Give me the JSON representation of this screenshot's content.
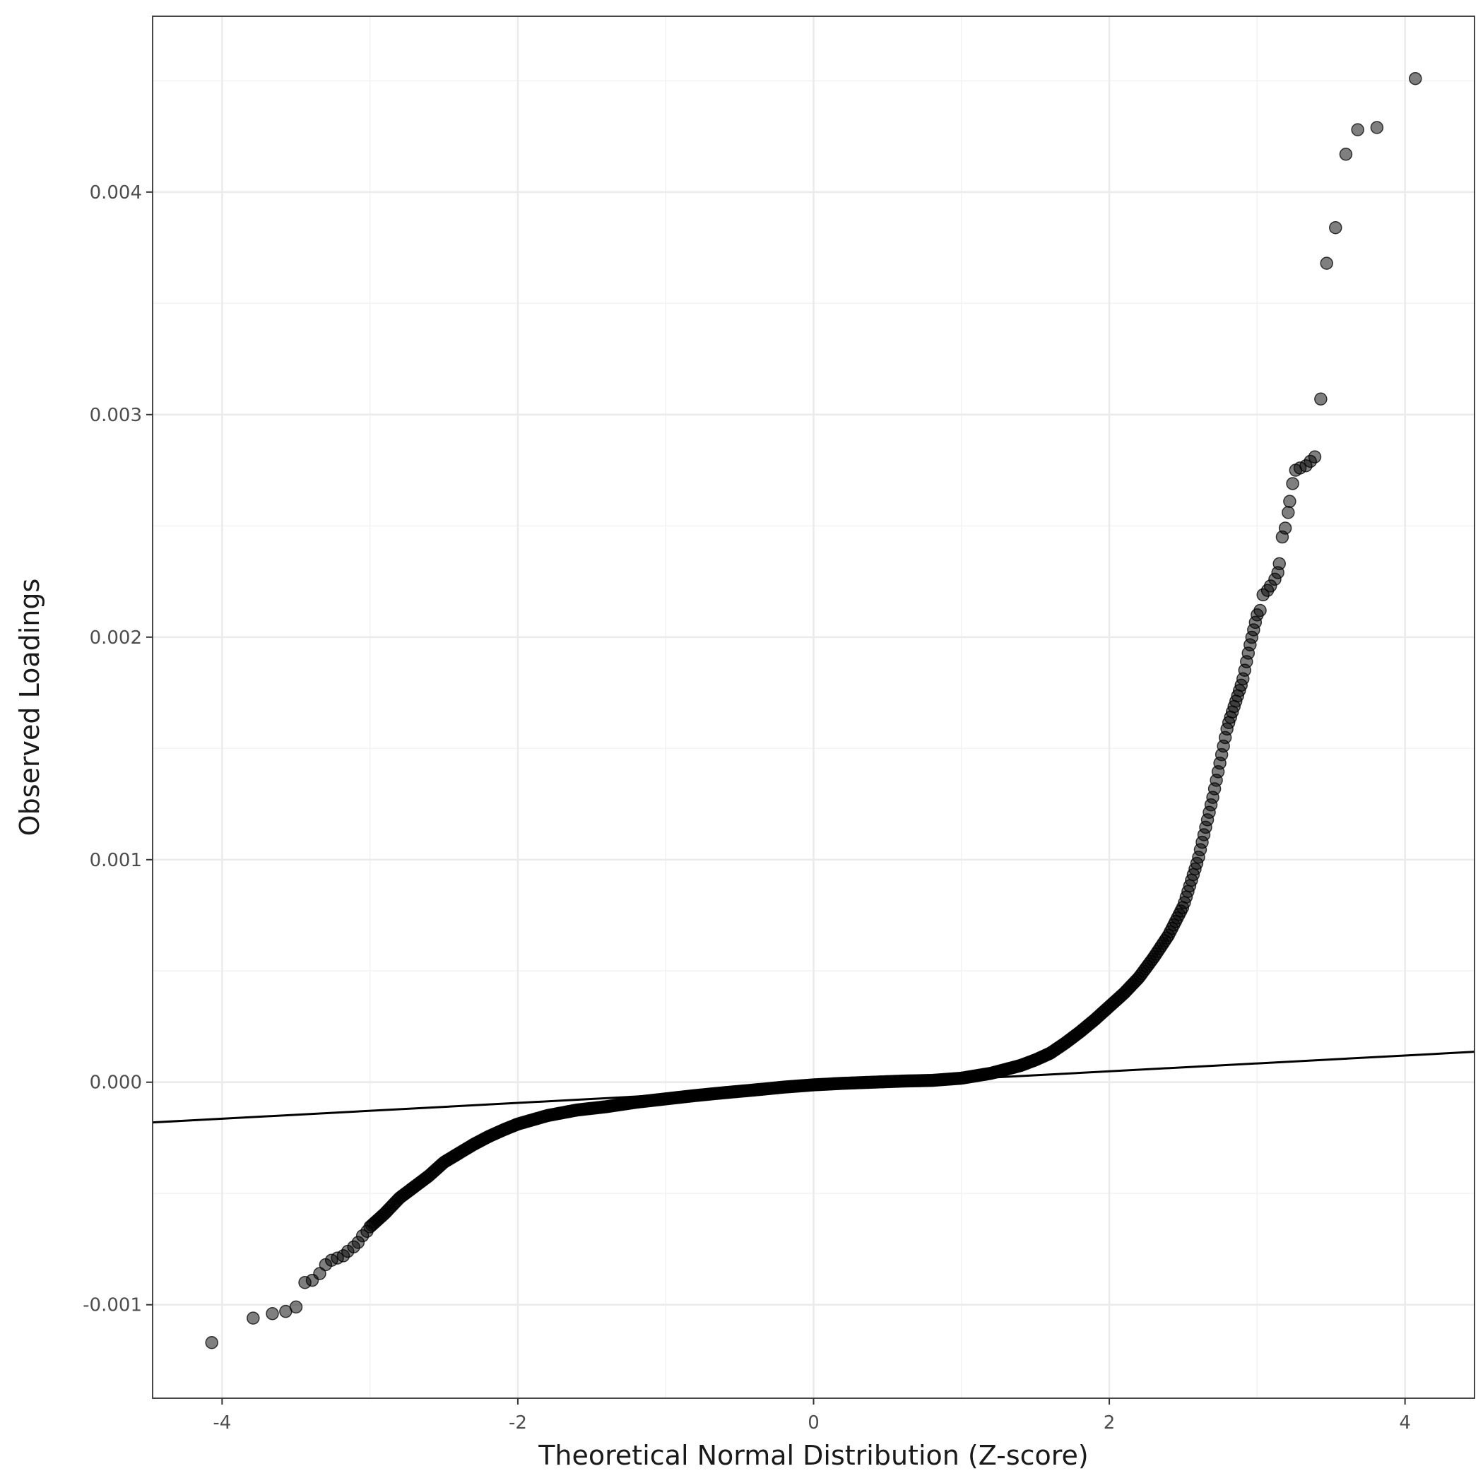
{
  "chart_data": {
    "type": "scatter",
    "xlabel": "Theoretical Normal Distribution (Z-score)",
    "ylabel": "Observed Loadings",
    "xlim": [
      -4.47,
      4.47
    ],
    "ylim": [
      -0.00142,
      0.00479
    ],
    "x_ticks": [
      {
        "value": -4,
        "label": "-4"
      },
      {
        "value": -2,
        "label": "-2"
      },
      {
        "value": 0,
        "label": "0"
      },
      {
        "value": 2,
        "label": "2"
      },
      {
        "value": 4,
        "label": "4"
      }
    ],
    "y_ticks": [
      {
        "value": -0.001,
        "label": "-0.001"
      },
      {
        "value": 0.0,
        "label": "0.000"
      },
      {
        "value": 0.001,
        "label": "0.001"
      },
      {
        "value": 0.002,
        "label": "0.002"
      },
      {
        "value": 0.003,
        "label": "0.003"
      },
      {
        "value": 0.004,
        "label": "0.004"
      }
    ],
    "reference_line": {
      "intercept": -2.2e-05,
      "slope": 3.55e-05
    },
    "grid": true,
    "legend": "none",
    "tail_points": [
      {
        "x": -4.07,
        "y": -0.00117
      },
      {
        "x": -3.79,
        "y": -0.00106
      },
      {
        "x": -3.66,
        "y": -0.00104
      },
      {
        "x": -3.57,
        "y": -0.00103
      },
      {
        "x": -3.5,
        "y": -0.00101
      },
      {
        "x": -3.44,
        "y": -0.0009
      },
      {
        "x": -3.39,
        "y": -0.00089
      },
      {
        "x": -3.34,
        "y": -0.00086
      },
      {
        "x": -3.3,
        "y": -0.00082
      },
      {
        "x": -3.26,
        "y": -0.0008
      },
      {
        "x": -3.22,
        "y": -0.00079
      },
      {
        "x": -3.18,
        "y": -0.00078
      },
      {
        "x": -3.15,
        "y": -0.00076
      },
      {
        "x": -3.11,
        "y": -0.00074
      },
      {
        "x": -3.08,
        "y": -0.00072
      },
      {
        "x": -3.05,
        "y": -0.00069
      },
      {
        "x": -3.02,
        "y": -0.00067
      },
      {
        "x": 3.02,
        "y": 0.00212
      },
      {
        "x": 3.04,
        "y": 0.00219
      },
      {
        "x": 3.07,
        "y": 0.00221
      },
      {
        "x": 3.09,
        "y": 0.00223
      },
      {
        "x": 3.12,
        "y": 0.00226
      },
      {
        "x": 3.14,
        "y": 0.00229
      },
      {
        "x": 3.15,
        "y": 0.00233
      },
      {
        "x": 3.17,
        "y": 0.00245
      },
      {
        "x": 3.19,
        "y": 0.00249
      },
      {
        "x": 3.21,
        "y": 0.00256
      },
      {
        "x": 3.22,
        "y": 0.00261
      },
      {
        "x": 3.24,
        "y": 0.00269
      },
      {
        "x": 3.26,
        "y": 0.00275
      },
      {
        "x": 3.29,
        "y": 0.00276
      },
      {
        "x": 3.33,
        "y": 0.00277
      },
      {
        "x": 3.36,
        "y": 0.00279
      },
      {
        "x": 3.39,
        "y": 0.00281
      },
      {
        "x": 3.43,
        "y": 0.00307
      },
      {
        "x": 3.47,
        "y": 0.00368
      },
      {
        "x": 3.53,
        "y": 0.00384
      },
      {
        "x": 3.6,
        "y": 0.00417
      },
      {
        "x": 3.68,
        "y": 0.00428
      },
      {
        "x": 3.81,
        "y": 0.00429
      },
      {
        "x": 4.07,
        "y": 0.00451
      }
    ],
    "curve_knots": [
      {
        "x": -3.0,
        "y": -0.00065
      },
      {
        "x": -2.9,
        "y": -0.00059
      },
      {
        "x": -2.8,
        "y": -0.00052
      },
      {
        "x": -2.7,
        "y": -0.00047
      },
      {
        "x": -2.6,
        "y": -0.00042
      },
      {
        "x": -2.5,
        "y": -0.00036
      },
      {
        "x": -2.4,
        "y": -0.00032
      },
      {
        "x": -2.3,
        "y": -0.00028
      },
      {
        "x": -2.2,
        "y": -0.000245
      },
      {
        "x": -2.1,
        "y": -0.000215
      },
      {
        "x": -2.0,
        "y": -0.000188
      },
      {
        "x": -1.8,
        "y": -0.00015
      },
      {
        "x": -1.6,
        "y": -0.000125
      },
      {
        "x": -1.4,
        "y": -0.00011
      },
      {
        "x": -1.2,
        "y": -9e-05
      },
      {
        "x": -1.0,
        "y": -7.5e-05
      },
      {
        "x": -0.8,
        "y": -6e-05
      },
      {
        "x": -0.6,
        "y": -4.7e-05
      },
      {
        "x": -0.4,
        "y": -3.5e-05
      },
      {
        "x": -0.2,
        "y": -2.2e-05
      },
      {
        "x": 0.0,
        "y": -1.2e-05
      },
      {
        "x": 0.2,
        "y": -5e-06
      },
      {
        "x": 0.4,
        "y": 0.0
      },
      {
        "x": 0.6,
        "y": 5e-06
      },
      {
        "x": 0.8,
        "y": 8e-06
      },
      {
        "x": 1.0,
        "y": 1.8e-05
      },
      {
        "x": 1.2,
        "y": 4e-05
      },
      {
        "x": 1.4,
        "y": 7.5e-05
      },
      {
        "x": 1.5,
        "y": 0.0001
      },
      {
        "x": 1.6,
        "y": 0.00013
      },
      {
        "x": 1.7,
        "y": 0.000175
      },
      {
        "x": 1.8,
        "y": 0.000225
      },
      {
        "x": 1.9,
        "y": 0.00028
      },
      {
        "x": 2.0,
        "y": 0.00034
      },
      {
        "x": 2.1,
        "y": 0.0004
      },
      {
        "x": 2.2,
        "y": 0.00047
      },
      {
        "x": 2.3,
        "y": 0.00056
      },
      {
        "x": 2.4,
        "y": 0.00066
      },
      {
        "x": 2.5,
        "y": 0.00079
      },
      {
        "x": 2.6,
        "y": 0.001
      },
      {
        "x": 2.7,
        "y": 0.00128
      },
      {
        "x": 2.8,
        "y": 0.0016
      },
      {
        "x": 2.9,
        "y": 0.0018
      },
      {
        "x": 2.95,
        "y": 0.00196
      },
      {
        "x": 3.0,
        "y": 0.0021
      }
    ]
  }
}
